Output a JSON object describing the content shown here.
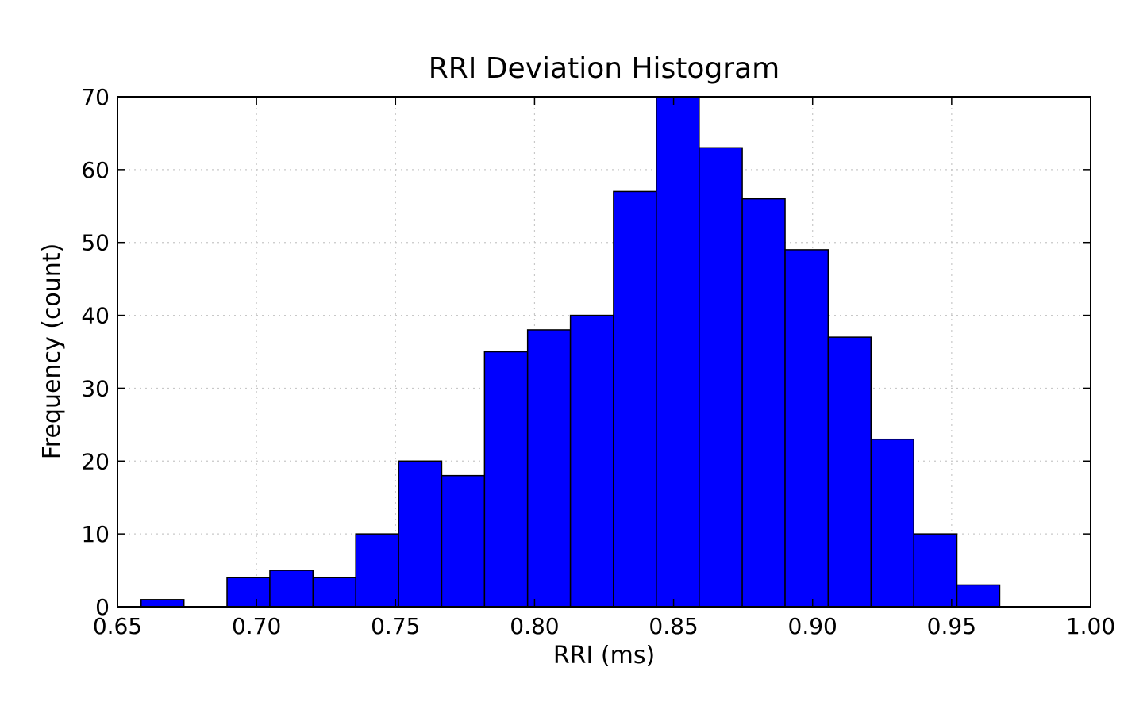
{
  "chart_data": {
    "type": "bar",
    "title": "RRI Deviation Histogram",
    "xlabel": "RRI (ms)",
    "ylabel": "Frequency (count)",
    "xlim": [
      0.65,
      1.0
    ],
    "ylim": [
      0,
      70
    ],
    "grid": true,
    "bar_color": "#0000ff",
    "bin_edges": [
      0.6585,
      0.6739,
      0.6894,
      0.7048,
      0.7203,
      0.7357,
      0.7511,
      0.7666,
      0.782,
      0.7975,
      0.8129,
      0.8284,
      0.8438,
      0.8592,
      0.8747,
      0.8901,
      0.9056,
      0.921,
      0.9364,
      0.9519,
      0.9673
    ],
    "values": [
      1,
      0,
      4,
      5,
      4,
      10,
      20,
      18,
      35,
      38,
      40,
      57,
      70,
      63,
      56,
      49,
      37,
      23,
      10,
      3
    ],
    "x_ticks": [
      {
        "value": 0.65,
        "label": "0.65"
      },
      {
        "value": 0.7,
        "label": "0.70"
      },
      {
        "value": 0.75,
        "label": "0.75"
      },
      {
        "value": 0.8,
        "label": "0.80"
      },
      {
        "value": 0.85,
        "label": "0.85"
      },
      {
        "value": 0.9,
        "label": "0.90"
      },
      {
        "value": 0.95,
        "label": "0.95"
      },
      {
        "value": 1.0,
        "label": "1.00"
      }
    ],
    "y_ticks": [
      {
        "value": 0,
        "label": "0"
      },
      {
        "value": 10,
        "label": "10"
      },
      {
        "value": 20,
        "label": "20"
      },
      {
        "value": 30,
        "label": "30"
      },
      {
        "value": 40,
        "label": "40"
      },
      {
        "value": 50,
        "label": "50"
      },
      {
        "value": 60,
        "label": "60"
      },
      {
        "value": 70,
        "label": "70"
      }
    ]
  }
}
